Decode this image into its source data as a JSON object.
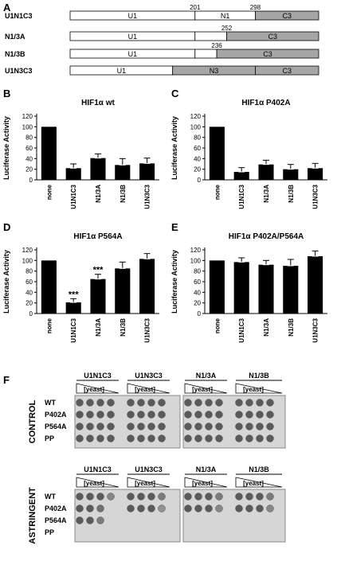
{
  "panel_a": {
    "label": "A",
    "constructs": [
      {
        "name": "U1N1C3",
        "segments": [
          {
            "text": "U1",
            "end": 201,
            "shaded": false
          },
          {
            "text": "N1",
            "end": 298,
            "shaded": false
          },
          {
            "text": "C3",
            "end": 400,
            "shaded": true
          }
        ],
        "marks": [
          "201",
          "298"
        ]
      },
      {
        "name": "N1/3A",
        "segments": [
          {
            "text": "U1",
            "end": 201,
            "shaded": false
          },
          {
            "text": "",
            "end": 252,
            "shaded": false
          },
          {
            "text": "C3",
            "end": 400,
            "shaded": true
          }
        ],
        "marks": [
          "252"
        ]
      },
      {
        "name": "N1/3B",
        "segments": [
          {
            "text": "U1",
            "end": 201,
            "shaded": false
          },
          {
            "text": "",
            "end": 236,
            "shaded": false
          },
          {
            "text": "C3",
            "end": 400,
            "shaded": true
          }
        ],
        "marks": [
          "236"
        ]
      },
      {
        "name": "U1N3C3",
        "segments": [
          {
            "text": "U1",
            "end": 165,
            "shaded": false
          },
          {
            "text": "N3",
            "end": 298,
            "shaded": true
          },
          {
            "text": "C3",
            "end": 400,
            "shaded": true
          }
        ],
        "marks": []
      }
    ]
  },
  "chart_data": [
    {
      "panel": "B",
      "type": "bar",
      "title": "HIF1α wt",
      "ylabel": "Luciferase Activity",
      "ylim": [
        0,
        120
      ],
      "yticks": [
        0,
        20,
        40,
        60,
        80,
        100,
        120
      ],
      "categories": [
        "none",
        "U1N1C3",
        "N1/3A",
        "N1/3B",
        "U1N3C3"
      ],
      "values": [
        100,
        22,
        41,
        28,
        31
      ],
      "errors": [
        0,
        8,
        8,
        12,
        10
      ],
      "annotations": [
        "",
        "",
        "",
        "",
        ""
      ]
    },
    {
      "panel": "C",
      "type": "bar",
      "title": "HIF1α P402A",
      "ylabel": "Luciferase Activity",
      "ylim": [
        0,
        120
      ],
      "yticks": [
        0,
        20,
        40,
        60,
        80,
        100,
        120
      ],
      "categories": [
        "none",
        "U1N1C3",
        "N1/3A",
        "N1/3B",
        "U1N3C3"
      ],
      "values": [
        100,
        15,
        29,
        20,
        22
      ],
      "errors": [
        0,
        8,
        8,
        9,
        9
      ],
      "annotations": [
        "",
        "",
        "",
        "",
        ""
      ]
    },
    {
      "panel": "D",
      "type": "bar",
      "title": "HIF1α P564A",
      "ylabel": "Luciferase Activity",
      "ylim": [
        0,
        120
      ],
      "yticks": [
        0,
        20,
        40,
        60,
        80,
        100,
        120
      ],
      "categories": [
        "none",
        "U1N1C3",
        "N1/3A",
        "N1/3B",
        "U1N3C3"
      ],
      "values": [
        100,
        21,
        65,
        85,
        103
      ],
      "errors": [
        0,
        7,
        9,
        12,
        10
      ],
      "annotations": [
        "",
        "***",
        "***",
        "",
        ""
      ]
    },
    {
      "panel": "E",
      "type": "bar",
      "title": "HIF1α P402A/P564A",
      "ylabel": "Luciferase Activity",
      "ylim": [
        0,
        120
      ],
      "yticks": [
        0,
        20,
        40,
        60,
        80,
        100,
        120
      ],
      "categories": [
        "none",
        "U1N1C3",
        "N1/3A",
        "N1/3B",
        "U1N3C3"
      ],
      "values": [
        100,
        97,
        92,
        90,
        108
      ],
      "errors": [
        0,
        8,
        8,
        12,
        10
      ],
      "annotations": [
        "",
        "",
        "",
        "",
        ""
      ]
    }
  ],
  "panel_f": {
    "label": "F",
    "yeast_label": "[yeast]",
    "control": {
      "condition": "CONTROL",
      "headers": [
        "U1N1C3",
        "U1N3C3",
        "N1/3A",
        "N1/3B"
      ],
      "rows": [
        "WT",
        "P402A",
        "P564A",
        "PP"
      ],
      "growth": [
        [
          [
            1,
            1,
            1,
            1
          ],
          [
            1,
            1,
            1,
            1
          ],
          [
            1,
            1,
            1,
            1
          ],
          [
            1,
            1,
            1,
            1
          ]
        ],
        [
          [
            1,
            1,
            1,
            1
          ],
          [
            1,
            1,
            1,
            1
          ],
          [
            1,
            1,
            1,
            1
          ],
          [
            1,
            1,
            1,
            1
          ]
        ],
        [
          [
            1,
            1,
            1,
            1
          ],
          [
            1,
            1,
            1,
            1
          ],
          [
            1,
            1,
            1,
            1
          ],
          [
            1,
            1,
            1,
            1
          ]
        ],
        [
          [
            1,
            1,
            1,
            1
          ],
          [
            1,
            1,
            1,
            1
          ],
          [
            1,
            1,
            1,
            1
          ],
          [
            1,
            1,
            1,
            1
          ]
        ]
      ]
    },
    "astringent": {
      "condition": "ASTRINGENT",
      "headers": [
        "U1N1C3",
        "U1N3C3",
        "N1/3A",
        "N1/3B"
      ],
      "rows": [
        "WT",
        "P402A",
        "P564A",
        "PP"
      ],
      "growth": [
        [
          [
            1,
            1,
            1,
            0.6
          ],
          [
            1,
            1,
            1,
            0.7
          ],
          [
            1,
            1,
            1,
            0.7
          ],
          [
            1,
            1,
            1,
            0.7
          ]
        ],
        [
          [
            1,
            1,
            0.8,
            0
          ],
          [
            1,
            1,
            1,
            0.5
          ],
          [
            1,
            1,
            1,
            0.6
          ],
          [
            1,
            1,
            1,
            0.6
          ]
        ],
        [
          [
            1,
            1,
            0.7,
            0
          ],
          [
            0,
            0,
            0,
            0
          ],
          [
            0,
            0,
            0,
            0
          ],
          [
            0,
            0,
            0,
            0
          ]
        ],
        [
          [
            0,
            0,
            0,
            0
          ],
          [
            0,
            0,
            0,
            0
          ],
          [
            0,
            0,
            0,
            0
          ],
          [
            0,
            0,
            0,
            0
          ]
        ]
      ]
    }
  }
}
